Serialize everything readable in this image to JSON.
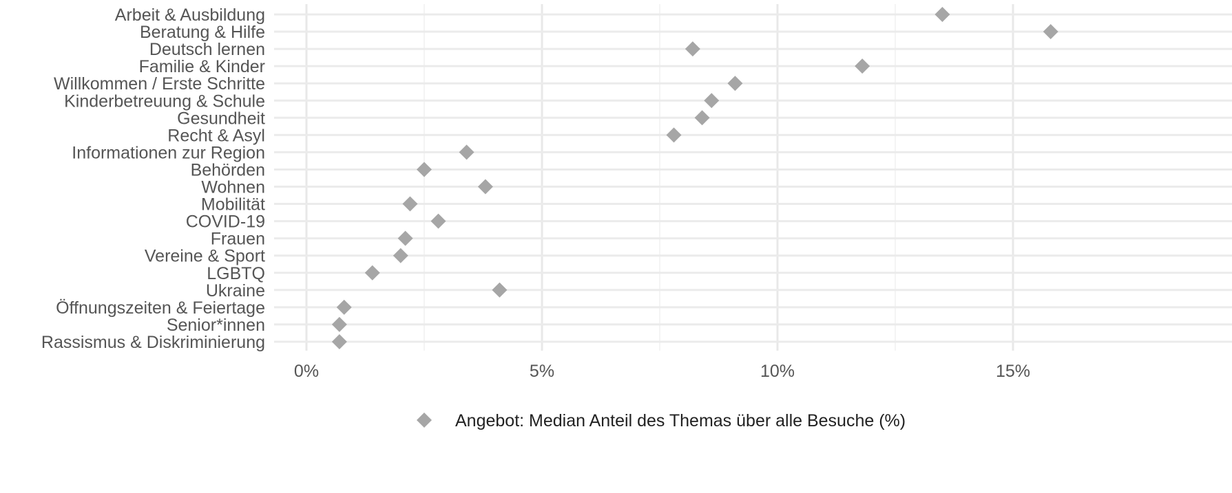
{
  "chart_data": {
    "type": "scatter",
    "marker": "diamond",
    "point_color": "#a6a6a6",
    "categories": [
      "Arbeit & Ausbildung",
      "Beratung & Hilfe",
      "Deutsch lernen",
      "Familie & Kinder",
      "Willkommen / Erste Schritte",
      "Kinderbetreuung & Schule",
      "Gesundheit",
      "Recht & Asyl",
      "Informationen zur Region",
      "Behörden",
      "Wohnen",
      "Mobilität",
      "COVID-19",
      "Frauen",
      "Vereine & Sport",
      "LGBTQ",
      "Ukraine",
      "Öffnungszeiten & Feiertage",
      "Senior*innen",
      "Rassismus & Diskriminierung"
    ],
    "series": [
      {
        "name": "Angebot: Median Anteil des Themas über alle Besuche (%)",
        "values": [
          13.5,
          15.8,
          8.2,
          11.8,
          9.1,
          8.6,
          8.4,
          7.8,
          3.4,
          2.5,
          3.8,
          2.2,
          2.8,
          2.1,
          2.0,
          1.4,
          4.1,
          0.8,
          0.7,
          0.7
        ]
      }
    ],
    "xlim": [
      -0.7,
      16.5
    ],
    "x_ticks": [
      0,
      5,
      10,
      15
    ],
    "x_tick_labels": [
      "0%",
      "5%",
      "10%",
      "15%"
    ],
    "xlabel": "",
    "ylabel": "",
    "title": "",
    "grid": true,
    "legend_position": "bottom"
  }
}
